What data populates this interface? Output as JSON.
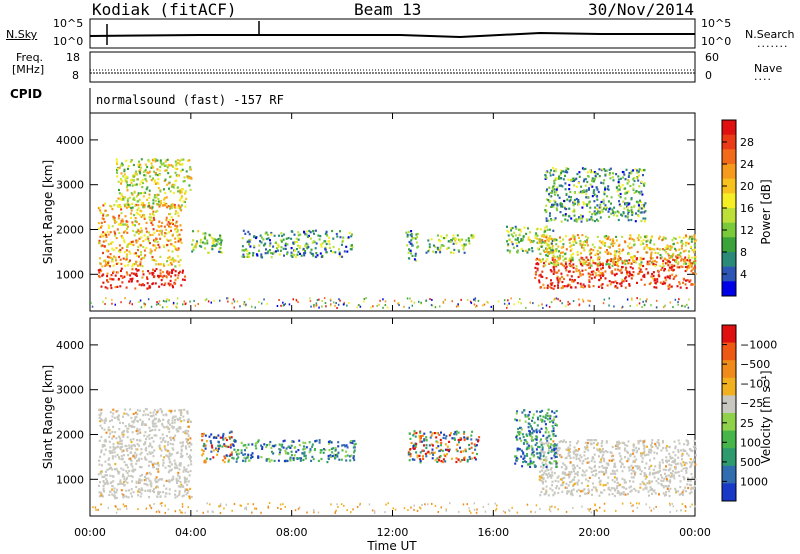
{
  "header": {
    "station": "Kodiak (fitACF)",
    "beam": "Beam 13",
    "date": "30/Nov/2014"
  },
  "top_panels": {
    "nsky_label": "N.Sky",
    "nsky_ticks": [
      "10^5",
      "10^0"
    ],
    "nsearch_label": "N.Search",
    "nsearch_ticks": [
      "10^5",
      "10^0"
    ],
    "freq_label_1": "Freq.",
    "freq_label_2": "[MHz]",
    "freq_ticks": [
      "18",
      "8"
    ],
    "nave_label": "Nave",
    "nave_ticks": [
      "60",
      "0"
    ],
    "cpid_label": "CPID",
    "cpid_text": "normalsound (fast) -157 RF"
  },
  "chart_data": [
    {
      "type": "heatmap",
      "title": "",
      "xlabel": "Time UT",
      "ylabel": "Slant Range [km]",
      "x_ticks": [
        "00:00",
        "04:00",
        "08:00",
        "12:00",
        "16:00",
        "20:00",
        "00:00"
      ],
      "y_ticks": [
        "1000",
        "2000",
        "3000",
        "4000"
      ],
      "xlim_hours": [
        0,
        24
      ],
      "ylim_km": [
        180,
        4600
      ],
      "colorbar_label": "Power [dB]",
      "colorbar_ticks": [
        "4",
        "8",
        "12",
        "16",
        "20",
        "24",
        "28"
      ],
      "colorbar_colors": [
        "#0000e8",
        "#2d55b5",
        "#2b8a77",
        "#3aa33a",
        "#79c93b",
        "#bde038",
        "#f4ee24",
        "#f7c21d",
        "#f59a1c",
        "#f26b1a",
        "#ea3a16",
        "#e01010"
      ],
      "regions": [
        {
          "t0": 0.3,
          "t1": 3.8,
          "r0": 700,
          "r1": 1150,
          "level": 0.95
        },
        {
          "t0": 0.3,
          "t1": 3.6,
          "r0": 1200,
          "r1": 2600,
          "level": 0.65
        },
        {
          "t0": 1.0,
          "t1": 4.0,
          "r0": 2500,
          "r1": 3600,
          "level": 0.5
        },
        {
          "t0": 4.0,
          "t1": 5.2,
          "r0": 1500,
          "r1": 2000,
          "level": 0.4
        },
        {
          "t0": 6.0,
          "t1": 10.4,
          "r0": 1400,
          "r1": 2000,
          "level": 0.3
        },
        {
          "t0": 12.5,
          "t1": 13.0,
          "r0": 1300,
          "r1": 2000,
          "level": 0.25
        },
        {
          "t0": 13.3,
          "t1": 15.2,
          "r0": 1500,
          "r1": 1900,
          "level": 0.35
        },
        {
          "t0": 16.5,
          "t1": 18.5,
          "r0": 1500,
          "r1": 2100,
          "level": 0.4
        },
        {
          "t0": 17.6,
          "t1": 24.0,
          "r0": 700,
          "r1": 1400,
          "level": 0.9
        },
        {
          "t0": 17.8,
          "t1": 24.0,
          "r0": 1200,
          "r1": 1900,
          "level": 0.55
        },
        {
          "t0": 18.0,
          "t1": 22.0,
          "r0": 2200,
          "r1": 3400,
          "level": 0.3
        }
      ]
    },
    {
      "type": "heatmap",
      "title": "",
      "xlabel": "Time UT",
      "ylabel": "Slant Range [km]",
      "x_ticks": [
        "00:00",
        "04:00",
        "08:00",
        "12:00",
        "16:00",
        "20:00",
        "00:00"
      ],
      "y_ticks": [
        "1000",
        "2000",
        "3000",
        "4000"
      ],
      "xlim_hours": [
        0,
        24
      ],
      "ylim_km": [
        180,
        4600
      ],
      "colorbar_label": "Velocity [m s⁻¹]",
      "colorbar_ticks": [
        "1000",
        "500",
        "100",
        "25",
        "−25",
        "−100",
        "−500",
        "−1000"
      ],
      "colorbar_colors": [
        "#1838c8",
        "#2f6cb0",
        "#2e9b6e",
        "#46b64a",
        "#8fd14a",
        "#c8c8c0",
        "#f0b020",
        "#f08a1a",
        "#ee5a14",
        "#e01010"
      ],
      "regions": [
        {
          "t0": 0.3,
          "t1": 4.0,
          "r0": 600,
          "r1": 2600,
          "kind": "ground"
        },
        {
          "t0": 17.8,
          "t1": 24.0,
          "r0": 650,
          "r1": 1900,
          "kind": "ground"
        },
        {
          "t0": 4.4,
          "t1": 5.6,
          "r0": 1400,
          "r1": 2100,
          "kind": "neg"
        },
        {
          "t0": 5.6,
          "t1": 10.5,
          "r0": 1400,
          "r1": 1900,
          "kind": "pos"
        },
        {
          "t0": 12.6,
          "t1": 15.4,
          "r0": 1400,
          "r1": 2100,
          "kind": "neg"
        },
        {
          "t0": 16.8,
          "t1": 18.5,
          "r0": 1300,
          "r1": 2600,
          "kind": "pos"
        }
      ]
    }
  ]
}
